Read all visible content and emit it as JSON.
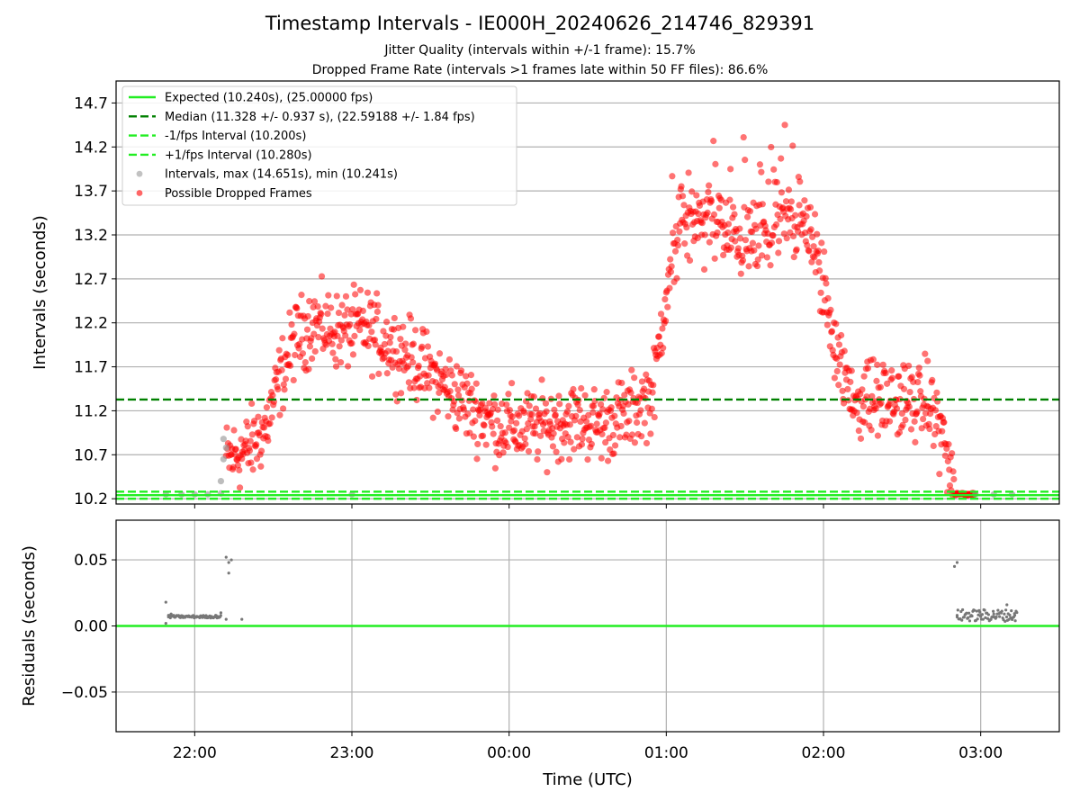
{
  "chart_data": [
    {
      "type": "scatter",
      "title": "Timestamp Intervals - IE000H_20240626_214746_829391",
      "subtitle_lines": [
        "Jitter Quality (intervals within +/-1 frame): 15.7%",
        "Dropped Frame Rate (intervals >1 frames late within 50 FF files): 86.6%"
      ],
      "ylabel": "Intervals (seconds)",
      "x_range": [
        "21:30",
        "03:30"
      ],
      "ylim": [
        10.14,
        14.95
      ],
      "y_ticks": [
        10.2,
        10.7,
        11.2,
        11.7,
        12.2,
        12.7,
        13.2,
        13.7,
        14.2,
        14.7
      ],
      "y_tick_labels": [
        "10.2",
        "10.7",
        "11.2",
        "11.7",
        "12.2",
        "12.7",
        "13.2",
        "13.7",
        "14.2",
        "14.7"
      ],
      "grid": "y",
      "legend_position": "upper-left",
      "reference_lines": [
        {
          "name": "Expected (10.240s), (25.00000 fps)",
          "value": 10.24,
          "style": "solid",
          "color": "#22ee22"
        },
        {
          "name": "Median (11.328 +/- 0.937 s), (22.59188 +/- 1.84 fps)",
          "value": 11.328,
          "style": "dashed",
          "color": "#008000"
        },
        {
          "name": "-1/fps Interval (10.200s)",
          "value": 10.2,
          "style": "dashed",
          "color": "#22ee22"
        },
        {
          "name": "+1/fps Interval (10.280s)",
          "value": 10.28,
          "style": "dashed",
          "color": "#22ee22"
        }
      ],
      "series": [
        {
          "name": "Intervals, max (14.651s), min (10.241s)",
          "color": "#999999",
          "points": [
            [
              "21:49",
              10.25
            ],
            [
              "21:55",
              10.25
            ],
            [
              "22:00",
              10.25
            ],
            [
              "22:05",
              10.25
            ],
            [
              "22:10",
              10.26
            ],
            [
              "22:10",
              10.4
            ],
            [
              "22:11",
              10.65
            ],
            [
              "22:11",
              10.88
            ],
            [
              "22:12",
              10.78
            ],
            [
              "23:00",
              10.25
            ],
            [
              "02:58",
              10.25
            ],
            [
              "03:05",
              10.25
            ],
            [
              "03:12",
              10.25
            ]
          ]
        },
        {
          "name": "Possible Dropped Frames",
          "color": "#ff0000",
          "trend_points": [
            [
              "22:12",
              10.65
            ],
            [
              "22:20",
              10.75
            ],
            [
              "22:27",
              11.0
            ],
            [
              "22:33",
              11.6
            ],
            [
              "22:38",
              12.0
            ],
            [
              "22:45",
              12.2
            ],
            [
              "22:55",
              12.1
            ],
            [
              "23:05",
              12.15
            ],
            [
              "23:15",
              11.95
            ],
            [
              "23:25",
              11.75
            ],
            [
              "23:35",
              11.5
            ],
            [
              "23:45",
              11.25
            ],
            [
              "23:55",
              11.05
            ],
            [
              "00:05",
              11.0
            ],
            [
              "00:15",
              11.05
            ],
            [
              "00:25",
              11.1
            ],
            [
              "00:35",
              11.05
            ],
            [
              "00:45",
              11.15
            ],
            [
              "00:55",
              11.4
            ],
            [
              "01:00",
              12.6
            ],
            [
              "01:05",
              13.3
            ],
            [
              "01:15",
              13.4
            ],
            [
              "01:25",
              13.2
            ],
            [
              "01:35",
              13.1
            ],
            [
              "01:45",
              13.4
            ],
            [
              "01:55",
              13.3
            ],
            [
              "02:00",
              12.6
            ],
            [
              "02:06",
              11.8
            ],
            [
              "02:10",
              11.35
            ],
            [
              "02:20",
              11.35
            ],
            [
              "02:30",
              11.3
            ],
            [
              "02:40",
              11.3
            ],
            [
              "02:45",
              11.0
            ],
            [
              "02:50",
              10.25
            ],
            [
              "02:58",
              10.25
            ]
          ],
          "scatter_band": 0.35
        }
      ]
    },
    {
      "type": "scatter",
      "xlabel": "Time (UTC)",
      "ylabel": "Residuals (seconds)",
      "x_range": [
        "21:30",
        "03:30"
      ],
      "x_ticks": [
        "22:00",
        "23:00",
        "00:00",
        "01:00",
        "02:00",
        "03:00"
      ],
      "ylim": [
        -0.08,
        0.08
      ],
      "y_ticks": [
        0.05,
        0.0,
        -0.05
      ],
      "y_tick_labels": [
        "0.05",
        "0.00",
        "−0.05"
      ],
      "grid": "both",
      "zero_line_color": "#22ee22",
      "series": [
        {
          "color": "#777777",
          "points": [
            [
              "21:49",
              0.018
            ],
            [
              "21:49",
              0.002
            ],
            [
              "21:50",
              0.008
            ],
            [
              "21:51",
              0.009
            ],
            [
              "21:52",
              0.008
            ],
            [
              "21:55",
              0.007
            ],
            [
              "22:00",
              0.007
            ],
            [
              "22:05",
              0.007
            ],
            [
              "22:08",
              0.008
            ],
            [
              "22:10",
              0.01
            ],
            [
              "22:12",
              0.052
            ],
            [
              "22:13",
              0.04
            ],
            [
              "22:13",
              0.048
            ],
            [
              "22:14",
              0.05
            ],
            [
              "22:12",
              0.005
            ],
            [
              "22:18",
              0.005
            ],
            [
              "02:50",
              0.045
            ],
            [
              "02:51",
              0.048
            ],
            [
              "02:51",
              0.008
            ],
            [
              "02:55",
              0.006
            ],
            [
              "03:00",
              0.008
            ],
            [
              "03:05",
              0.009
            ],
            [
              "03:10",
              0.016
            ],
            [
              "03:13",
              0.008
            ]
          ]
        }
      ]
    }
  ]
}
